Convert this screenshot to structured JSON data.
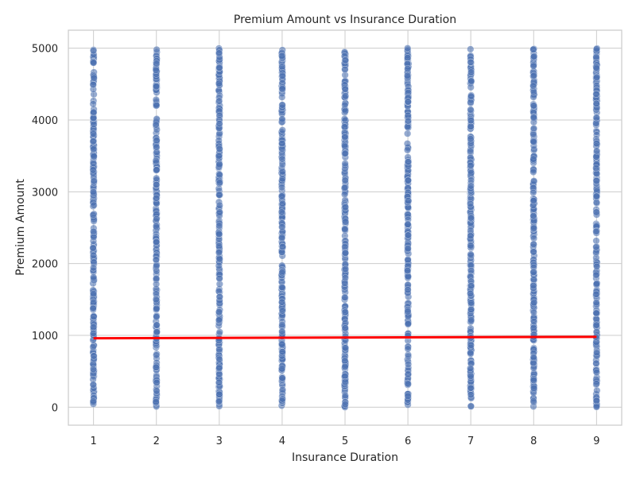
{
  "chart_data": {
    "type": "scatter",
    "title": "Premium Amount vs Insurance Duration",
    "xlabel": "Insurance Duration",
    "ylabel": "Premium Amount",
    "xlim": [
      0.6,
      9.4
    ],
    "ylim": [
      -250,
      5250
    ],
    "x_ticks": [
      1,
      2,
      3,
      4,
      5,
      6,
      7,
      8,
      9
    ],
    "y_ticks": [
      0,
      1000,
      2000,
      3000,
      4000,
      5000
    ],
    "grid": true,
    "legend": "none",
    "series": [
      {
        "x_values": [
          1,
          2,
          3,
          4,
          5,
          6,
          7,
          8,
          9
        ],
        "y_range_per_x": [
          0,
          5000
        ],
        "color": "#4c72b0"
      }
    ],
    "trend_line": {
      "x": [
        1,
        9
      ],
      "y": [
        960,
        980
      ],
      "color": "#ff0000"
    },
    "colors": {
      "axes_frame": "#cccccc",
      "grid": "#cccccc",
      "text": "#262626",
      "points": "#4c72b0",
      "trend": "#ff0000"
    }
  }
}
